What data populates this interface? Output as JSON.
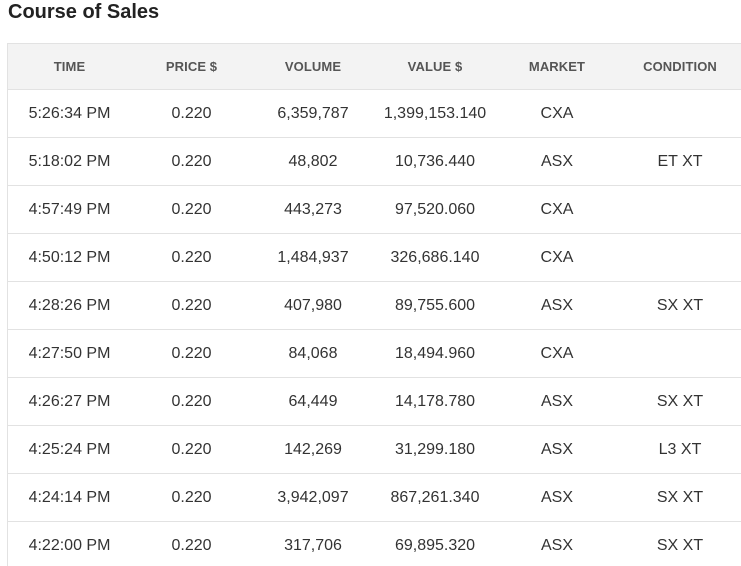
{
  "page": {
    "title": "Course of Sales"
  },
  "table": {
    "headers": {
      "time": "TIME",
      "price": "PRICE $",
      "volume": "VOLUME",
      "value": "VALUE $",
      "market": "MARKET",
      "condition": "CONDITION"
    },
    "rows": [
      {
        "time": "5:26:34 PM",
        "price": "0.220",
        "volume": "6,359,787",
        "value": "1,399,153.140",
        "market": "CXA",
        "condition": ""
      },
      {
        "time": "5:18:02 PM",
        "price": "0.220",
        "volume": "48,802",
        "value": "10,736.440",
        "market": "ASX",
        "condition": "ET XT"
      },
      {
        "time": "4:57:49 PM",
        "price": "0.220",
        "volume": "443,273",
        "value": "97,520.060",
        "market": "CXA",
        "condition": ""
      },
      {
        "time": "4:50:12 PM",
        "price": "0.220",
        "volume": "1,484,937",
        "value": "326,686.140",
        "market": "CXA",
        "condition": ""
      },
      {
        "time": "4:28:26 PM",
        "price": "0.220",
        "volume": "407,980",
        "value": "89,755.600",
        "market": "ASX",
        "condition": "SX XT"
      },
      {
        "time": "4:27:50 PM",
        "price": "0.220",
        "volume": "84,068",
        "value": "18,494.960",
        "market": "CXA",
        "condition": ""
      },
      {
        "time": "4:26:27 PM",
        "price": "0.220",
        "volume": "64,449",
        "value": "14,178.780",
        "market": "ASX",
        "condition": "SX XT"
      },
      {
        "time": "4:25:24 PM",
        "price": "0.220",
        "volume": "142,269",
        "value": "31,299.180",
        "market": "ASX",
        "condition": "L3 XT"
      },
      {
        "time": "4:24:14 PM",
        "price": "0.220",
        "volume": "3,942,097",
        "value": "867,261.340",
        "market": "ASX",
        "condition": "SX XT"
      },
      {
        "time": "4:22:00 PM",
        "price": "0.220",
        "volume": "317,706",
        "value": "69,895.320",
        "market": "ASX",
        "condition": "SX XT"
      }
    ]
  }
}
